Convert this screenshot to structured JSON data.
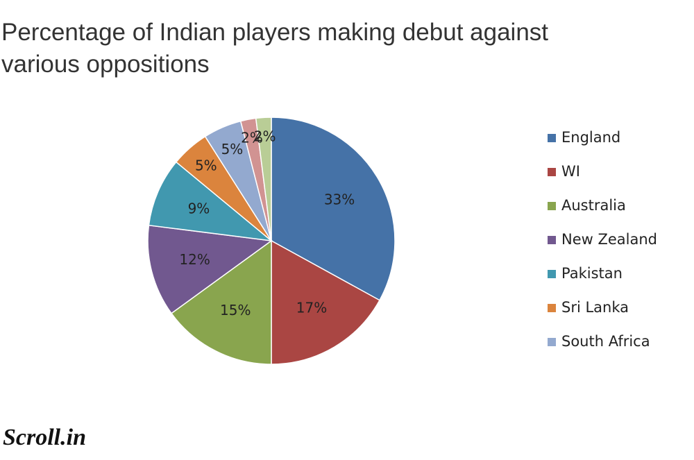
{
  "chart_data": {
    "type": "pie",
    "title": "Percentage of Indian players making debut against various oppositions",
    "categories": [
      "England",
      "WI",
      "Australia",
      "New Zealand",
      "Pakistan",
      "Sri Lanka",
      "South Africa",
      null,
      null
    ],
    "values": [
      33,
      17,
      15,
      12,
      9,
      5,
      5,
      2,
      2
    ],
    "value_labels": [
      "33%",
      "17%",
      "15%",
      "12%",
      "9%",
      "5%",
      "5%",
      "2%",
      "2%"
    ],
    "colors": [
      "#4572a7",
      "#aa4643",
      "#89a54e",
      "#71588f",
      "#4198af",
      "#db843d",
      "#93a9cf",
      "#d19392",
      "#b9cd96"
    ],
    "legend": "right"
  },
  "logo": "Scroll.in"
}
